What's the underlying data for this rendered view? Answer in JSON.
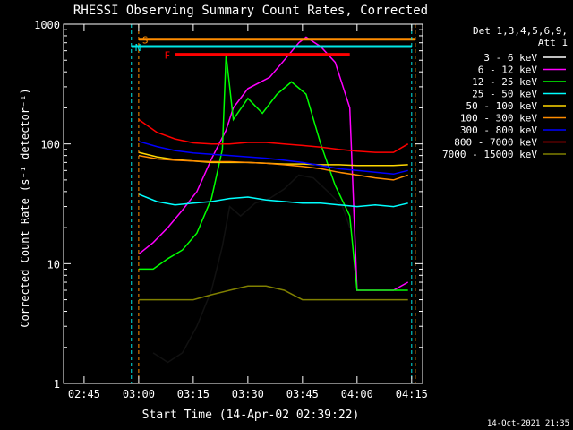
{
  "chart_data": {
    "type": "line",
    "title": "RHESSI Observing Summary Count Rates, Corrected",
    "xlabel": "Start Time (14-Apr-02 02:39:22)",
    "ylabel": "Corrected Count Rate (s⁻¹ detector⁻¹)",
    "yscale": "log",
    "ylim": [
      1,
      1000
    ],
    "xlim": [
      "02:39:22",
      "04:18:00"
    ],
    "x_ticks": [
      "02:45",
      "03:00",
      "03:15",
      "03:30",
      "03:45",
      "04:00",
      "04:15"
    ],
    "y_ticks": [
      "1",
      "10",
      "100",
      "1000"
    ],
    "legend_position": "top-right",
    "legend_header": [
      "Det 1,3,4,5,6,9,",
      "Att 1"
    ],
    "footer_date": "14-Oct-2021 21:35",
    "colors": {
      "background": "#000000",
      "axes": "#ffffff",
      "s_marker": "#ff8c00",
      "n_marker": "#00e5e5",
      "f_marker": "#ff0000"
    },
    "markers": [
      {
        "label": "S",
        "color": "#ff8c00",
        "start": "03:00",
        "end": "04:16",
        "level": 750
      },
      {
        "label": "N",
        "color": "#00e5e5",
        "start": "02:58",
        "end": "04:15",
        "level": 650
      },
      {
        "label": "F",
        "color": "#ff0000",
        "start": "03:10",
        "end": "03:58",
        "level": 560
      }
    ],
    "series": [
      {
        "name": "3 - 6 keV",
        "color": "#000000",
        "x": [
          "03:04",
          "03:08",
          "03:12",
          "03:16",
          "03:20",
          "03:23",
          "03:25",
          "03:28",
          "03:32",
          "03:36",
          "03:40",
          "03:44",
          "03:48",
          "03:52",
          "03:56",
          "03:58"
        ],
        "y": [
          1.8,
          1.5,
          1.8,
          3,
          6,
          14,
          30,
          25,
          32,
          35,
          42,
          55,
          52,
          40,
          30,
          20
        ]
      },
      {
        "name": "6 - 12 keV",
        "color": "#ff00ff",
        "x": [
          "03:00",
          "03:04",
          "03:08",
          "03:12",
          "03:16",
          "03:20",
          "03:24",
          "03:26",
          "03:30",
          "03:36",
          "03:40",
          "03:44",
          "03:46",
          "03:50",
          "03:54",
          "03:58",
          "04:00",
          "04:05",
          "04:10",
          "04:14"
        ],
        "y": [
          12,
          15,
          20,
          28,
          40,
          75,
          130,
          200,
          290,
          360,
          500,
          700,
          780,
          650,
          480,
          200,
          6,
          6,
          6,
          7
        ]
      },
      {
        "name": "12 - 25 keV",
        "color": "#00ff00",
        "x": [
          "03:00",
          "03:04",
          "03:08",
          "03:12",
          "03:16",
          "03:20",
          "03:23",
          "03:24",
          "03:26",
          "03:30",
          "03:34",
          "03:38",
          "03:42",
          "03:46",
          "03:50",
          "03:54",
          "03:58",
          "04:00",
          "04:05",
          "04:10",
          "04:14"
        ],
        "y": [
          9,
          9,
          11,
          13,
          18,
          35,
          90,
          560,
          160,
          240,
          180,
          260,
          330,
          260,
          100,
          45,
          25,
          6,
          6,
          6,
          6
        ]
      },
      {
        "name": "25 - 50 keV",
        "color": "#00ffff",
        "x": [
          "03:00",
          "03:05",
          "03:10",
          "03:15",
          "03:20",
          "03:25",
          "03:30",
          "03:35",
          "03:40",
          "03:45",
          "03:50",
          "03:55",
          "04:00",
          "04:05",
          "04:10",
          "04:14"
        ],
        "y": [
          38,
          33,
          31,
          32,
          33,
          35,
          36,
          34,
          33,
          32,
          32,
          31,
          30,
          31,
          30,
          32
        ]
      },
      {
        "name": "50 - 100 keV",
        "color": "#ffd700",
        "x": [
          "03:00",
          "03:05",
          "03:10",
          "03:15",
          "03:20",
          "03:25",
          "03:30",
          "03:35",
          "03:40",
          "03:45",
          "03:50",
          "03:55",
          "04:00",
          "04:05",
          "04:10",
          "04:14"
        ],
        "y": [
          85,
          78,
          74,
          72,
          70,
          70,
          70,
          69,
          68,
          68,
          67,
          67,
          66,
          66,
          66,
          67
        ]
      },
      {
        "name": "100 - 300 keV",
        "color": "#ff8c00",
        "x": [
          "03:00",
          "03:05",
          "03:10",
          "03:15",
          "03:20",
          "03:25",
          "03:30",
          "03:35",
          "03:40",
          "03:45",
          "03:50",
          "03:55",
          "04:00",
          "04:05",
          "04:10",
          "04:14"
        ],
        "y": [
          80,
          75,
          73,
          72,
          71,
          71,
          70,
          69,
          67,
          65,
          62,
          58,
          55,
          52,
          50,
          55
        ]
      },
      {
        "name": "300 - 800 keV",
        "color": "#0000ff",
        "x": [
          "03:00",
          "03:05",
          "03:10",
          "03:15",
          "03:20",
          "03:25",
          "03:30",
          "03:35",
          "03:40",
          "03:45",
          "03:50",
          "03:55",
          "04:00",
          "04:05",
          "04:10",
          "04:14"
        ],
        "y": [
          105,
          95,
          88,
          84,
          82,
          80,
          78,
          76,
          73,
          70,
          66,
          62,
          60,
          58,
          56,
          60
        ]
      },
      {
        "name": "800 - 7000 keV",
        "color": "#ff0000",
        "x": [
          "03:00",
          "03:05",
          "03:10",
          "03:15",
          "03:20",
          "03:25",
          "03:30",
          "03:35",
          "03:40",
          "03:45",
          "03:50",
          "03:55",
          "04:00",
          "04:05",
          "04:10",
          "04:14"
        ],
        "y": [
          160,
          125,
          110,
          102,
          100,
          100,
          103,
          103,
          100,
          97,
          94,
          90,
          87,
          85,
          85,
          100
        ]
      },
      {
        "name": "7000 - 15000 keV",
        "color": "#808000",
        "x": [
          "03:00",
          "03:05",
          "03:10",
          "03:15",
          "03:20",
          "03:25",
          "03:30",
          "03:35",
          "03:40",
          "03:45",
          "03:50",
          "03:55",
          "04:00",
          "04:05",
          "04:10",
          "04:14"
        ],
        "y": [
          5,
          5,
          5,
          5,
          5.5,
          6,
          6.5,
          6.5,
          6,
          5,
          5,
          5,
          5,
          5,
          5,
          5
        ]
      }
    ]
  }
}
